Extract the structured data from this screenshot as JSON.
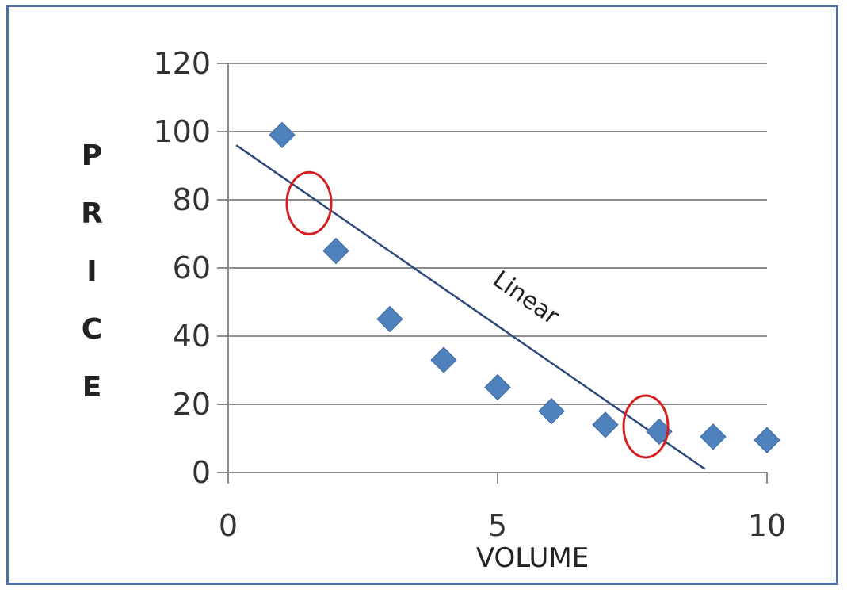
{
  "chart_data": {
    "type": "scatter",
    "title": "",
    "xlabel": "VOLUME",
    "ylabel": "PRICE",
    "xlim": [
      0,
      10
    ],
    "ylim": [
      0,
      120
    ],
    "x_ticks": [
      "0",
      "5",
      "10"
    ],
    "y_ticks": [
      "0",
      "20",
      "40",
      "60",
      "80",
      "100",
      "120"
    ],
    "grid": "horizontal",
    "legend": "none",
    "series": [
      {
        "color": "#4f81bd",
        "marker": "diamond",
        "x": [
          1,
          2,
          3,
          4,
          5,
          6,
          7,
          8,
          9,
          10
        ],
        "y": [
          99,
          65,
          45,
          33,
          25,
          18,
          14,
          12,
          10.5,
          9.5
        ]
      }
    ],
    "trendline": {
      "label": "Linear",
      "color": "#2e4a7a",
      "x": [
        0.15,
        8.85
      ],
      "y": [
        96,
        1
      ]
    },
    "highlights": [
      {
        "x": 1.5,
        "y": 79,
        "color": "#d42020"
      },
      {
        "x": 7.75,
        "y": 13.5,
        "color": "#d42020"
      }
    ]
  }
}
